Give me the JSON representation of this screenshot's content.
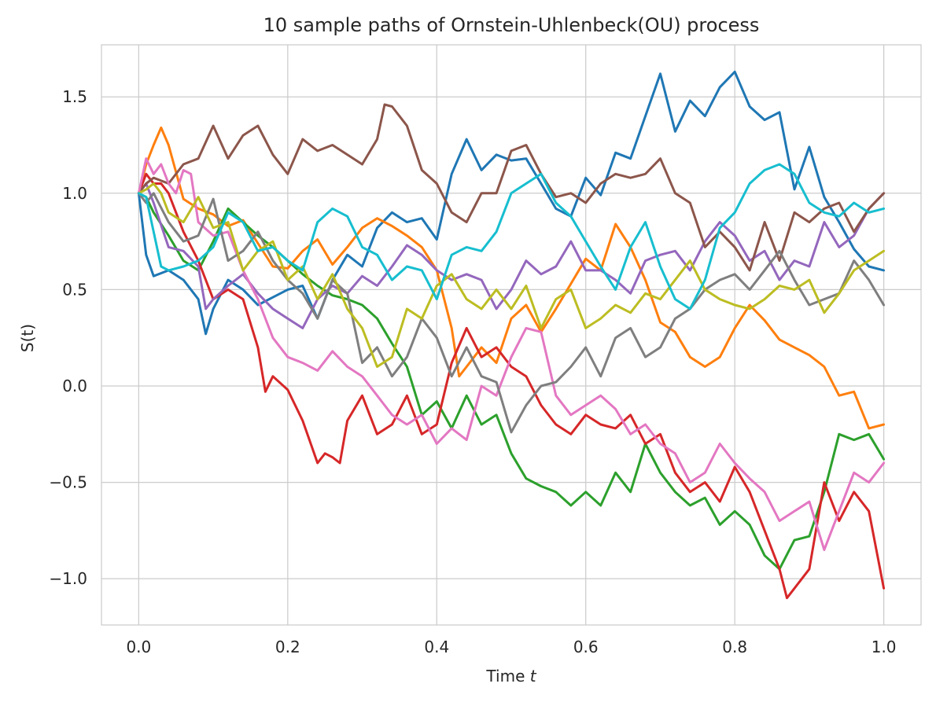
{
  "chart_data": {
    "type": "line",
    "title": "10 sample paths of Ornstein-Uhlenbeck(OU) process",
    "xlabel": "Time",
    "xlabel_var": "t",
    "ylabel": "S(t)",
    "xlim": [
      -0.05,
      1.05
    ],
    "ylim": [
      -1.24,
      1.77
    ],
    "xticks": [
      "0.0",
      "0.2",
      "0.4",
      "0.6",
      "0.8",
      "1.0"
    ],
    "yticks": [
      "−1.0",
      "−0.5",
      "0.0",
      "0.5",
      "1.0",
      "1.5"
    ],
    "grid": true,
    "legend": "none",
    "series": [
      {
        "color": "#1f77b4",
        "x": [
          0,
          0.01,
          0.02,
          0.04,
          0.06,
          0.08,
          0.09,
          0.1,
          0.12,
          0.14,
          0.16,
          0.18,
          0.2,
          0.22,
          0.24,
          0.26,
          0.28,
          0.3,
          0.32,
          0.34,
          0.36,
          0.38,
          0.4,
          0.42,
          0.44,
          0.46,
          0.48,
          0.5,
          0.52,
          0.54,
          0.56,
          0.58,
          0.6,
          0.62,
          0.64,
          0.66,
          0.68,
          0.7,
          0.72,
          0.74,
          0.76,
          0.78,
          0.8,
          0.82,
          0.84,
          0.86,
          0.88,
          0.9,
          0.92,
          0.94,
          0.96,
          0.98,
          1.0
        ],
        "y": [
          1.0,
          0.68,
          0.57,
          0.6,
          0.55,
          0.45,
          0.27,
          0.4,
          0.55,
          0.5,
          0.42,
          0.46,
          0.5,
          0.52,
          0.35,
          0.55,
          0.68,
          0.62,
          0.82,
          0.9,
          0.85,
          0.87,
          0.76,
          1.1,
          1.28,
          1.12,
          1.2,
          1.17,
          1.18,
          1.05,
          0.92,
          0.88,
          1.08,
          0.99,
          1.21,
          1.18,
          1.4,
          1.62,
          1.32,
          1.48,
          1.4,
          1.55,
          1.63,
          1.45,
          1.38,
          1.42,
          1.02,
          1.24,
          0.98,
          0.85,
          0.71,
          0.62,
          0.6
        ]
      },
      {
        "color": "#ff7f0e",
        "x": [
          0,
          0.01,
          0.02,
          0.03,
          0.04,
          0.06,
          0.08,
          0.1,
          0.12,
          0.14,
          0.16,
          0.18,
          0.2,
          0.22,
          0.24,
          0.26,
          0.28,
          0.3,
          0.32,
          0.34,
          0.36,
          0.38,
          0.4,
          0.42,
          0.43,
          0.44,
          0.46,
          0.48,
          0.5,
          0.52,
          0.54,
          0.56,
          0.58,
          0.6,
          0.62,
          0.64,
          0.66,
          0.68,
          0.7,
          0.72,
          0.74,
          0.76,
          0.78,
          0.8,
          0.82,
          0.84,
          0.86,
          0.88,
          0.9,
          0.92,
          0.94,
          0.96,
          0.98,
          1.0
        ],
        "y": [
          1.0,
          1.15,
          1.25,
          1.34,
          1.25,
          0.97,
          0.92,
          0.89,
          0.83,
          0.86,
          0.74,
          0.62,
          0.61,
          0.7,
          0.76,
          0.63,
          0.72,
          0.82,
          0.87,
          0.83,
          0.78,
          0.72,
          0.6,
          0.3,
          0.05,
          0.1,
          0.2,
          0.12,
          0.35,
          0.42,
          0.28,
          0.4,
          0.53,
          0.66,
          0.6,
          0.84,
          0.72,
          0.55,
          0.33,
          0.28,
          0.15,
          0.1,
          0.15,
          0.3,
          0.42,
          0.34,
          0.24,
          0.2,
          0.16,
          0.1,
          -0.05,
          -0.03,
          -0.22,
          -0.2
        ]
      },
      {
        "color": "#2ca02c",
        "x": [
          0,
          0.01,
          0.02,
          0.04,
          0.06,
          0.08,
          0.1,
          0.12,
          0.14,
          0.16,
          0.18,
          0.2,
          0.22,
          0.24,
          0.26,
          0.28,
          0.3,
          0.32,
          0.34,
          0.36,
          0.38,
          0.4,
          0.42,
          0.44,
          0.46,
          0.48,
          0.5,
          0.52,
          0.54,
          0.56,
          0.58,
          0.6,
          0.62,
          0.64,
          0.66,
          0.68,
          0.7,
          0.72,
          0.74,
          0.76,
          0.78,
          0.8,
          0.82,
          0.84,
          0.86,
          0.88,
          0.9,
          0.92,
          0.94,
          0.96,
          0.98,
          1.0
        ],
        "y": [
          1.0,
          0.98,
          0.9,
          0.78,
          0.65,
          0.6,
          0.75,
          0.92,
          0.85,
          0.78,
          0.72,
          0.65,
          0.58,
          0.52,
          0.47,
          0.45,
          0.42,
          0.35,
          0.22,
          0.1,
          -0.15,
          -0.08,
          -0.22,
          -0.05,
          -0.2,
          -0.15,
          -0.35,
          -0.48,
          -0.52,
          -0.55,
          -0.62,
          -0.55,
          -0.62,
          -0.45,
          -0.55,
          -0.3,
          -0.45,
          -0.55,
          -0.62,
          -0.58,
          -0.72,
          -0.65,
          -0.72,
          -0.88,
          -0.95,
          -0.8,
          -0.78,
          -0.55,
          -0.25,
          -0.28,
          -0.25,
          -0.38
        ]
      },
      {
        "color": "#d62728",
        "x": [
          0,
          0.01,
          0.02,
          0.03,
          0.04,
          0.06,
          0.08,
          0.1,
          0.12,
          0.14,
          0.16,
          0.17,
          0.18,
          0.2,
          0.22,
          0.24,
          0.25,
          0.26,
          0.27,
          0.28,
          0.3,
          0.32,
          0.34,
          0.36,
          0.38,
          0.4,
          0.42,
          0.44,
          0.46,
          0.48,
          0.5,
          0.52,
          0.54,
          0.56,
          0.58,
          0.6,
          0.62,
          0.64,
          0.66,
          0.68,
          0.7,
          0.72,
          0.74,
          0.76,
          0.78,
          0.8,
          0.82,
          0.84,
          0.86,
          0.87,
          0.88,
          0.9,
          0.92,
          0.94,
          0.96,
          0.98,
          1.0
        ],
        "y": [
          1.0,
          1.1,
          1.05,
          1.05,
          1.0,
          0.8,
          0.65,
          0.45,
          0.5,
          0.45,
          0.2,
          -0.03,
          0.05,
          -0.02,
          -0.18,
          -0.4,
          -0.35,
          -0.37,
          -0.4,
          -0.18,
          -0.05,
          -0.25,
          -0.2,
          -0.05,
          -0.25,
          -0.2,
          0.12,
          0.3,
          0.15,
          0.2,
          0.1,
          0.05,
          -0.1,
          -0.2,
          -0.25,
          -0.15,
          -0.2,
          -0.22,
          -0.15,
          -0.3,
          -0.25,
          -0.45,
          -0.55,
          -0.5,
          -0.6,
          -0.42,
          -0.55,
          -0.75,
          -0.95,
          -1.1,
          -1.05,
          -0.95,
          -0.5,
          -0.7,
          -0.55,
          -0.65,
          -1.05
        ]
      },
      {
        "color": "#9467bd",
        "x": [
          0,
          0.01,
          0.02,
          0.04,
          0.06,
          0.08,
          0.09,
          0.1,
          0.12,
          0.14,
          0.16,
          0.18,
          0.2,
          0.22,
          0.24,
          0.26,
          0.28,
          0.3,
          0.32,
          0.34,
          0.36,
          0.38,
          0.4,
          0.42,
          0.44,
          0.46,
          0.48,
          0.5,
          0.52,
          0.54,
          0.56,
          0.58,
          0.6,
          0.62,
          0.64,
          0.66,
          0.68,
          0.7,
          0.72,
          0.74,
          0.76,
          0.78,
          0.8,
          0.82,
          0.84,
          0.86,
          0.88,
          0.9,
          0.92,
          0.94,
          0.96,
          0.98,
          1.0
        ],
        "y": [
          1.0,
          1.05,
          0.95,
          0.72,
          0.7,
          0.62,
          0.4,
          0.45,
          0.52,
          0.58,
          0.48,
          0.4,
          0.35,
          0.3,
          0.45,
          0.52,
          0.48,
          0.57,
          0.52,
          0.62,
          0.73,
          0.68,
          0.6,
          0.55,
          0.58,
          0.55,
          0.4,
          0.5,
          0.65,
          0.58,
          0.62,
          0.75,
          0.6,
          0.6,
          0.55,
          0.48,
          0.65,
          0.68,
          0.7,
          0.6,
          0.75,
          0.85,
          0.78,
          0.65,
          0.7,
          0.55,
          0.65,
          0.62,
          0.85,
          0.72,
          0.78,
          0.92,
          1.0
        ]
      },
      {
        "color": "#8c564b",
        "x": [
          0,
          0.01,
          0.02,
          0.04,
          0.06,
          0.08,
          0.1,
          0.12,
          0.14,
          0.16,
          0.18,
          0.2,
          0.22,
          0.24,
          0.26,
          0.28,
          0.3,
          0.32,
          0.33,
          0.34,
          0.36,
          0.38,
          0.4,
          0.42,
          0.44,
          0.46,
          0.48,
          0.5,
          0.52,
          0.54,
          0.56,
          0.58,
          0.6,
          0.62,
          0.64,
          0.66,
          0.68,
          0.7,
          0.72,
          0.74,
          0.76,
          0.78,
          0.8,
          0.82,
          0.84,
          0.86,
          0.88,
          0.9,
          0.92,
          0.94,
          0.96,
          0.98,
          1.0
        ],
        "y": [
          1.0,
          1.05,
          1.08,
          1.05,
          1.15,
          1.18,
          1.35,
          1.18,
          1.3,
          1.35,
          1.2,
          1.1,
          1.28,
          1.22,
          1.25,
          1.2,
          1.15,
          1.28,
          1.46,
          1.45,
          1.35,
          1.12,
          1.05,
          0.9,
          0.85,
          1.0,
          1.0,
          1.22,
          1.25,
          1.1,
          0.98,
          1.0,
          0.95,
          1.05,
          1.1,
          1.08,
          1.1,
          1.18,
          1.0,
          0.95,
          0.72,
          0.8,
          0.72,
          0.6,
          0.85,
          0.65,
          0.9,
          0.85,
          0.92,
          0.95,
          0.8,
          0.92,
          1.0
        ]
      },
      {
        "color": "#e377c2",
        "x": [
          0,
          0.01,
          0.02,
          0.03,
          0.04,
          0.05,
          0.06,
          0.07,
          0.08,
          0.1,
          0.12,
          0.14,
          0.16,
          0.18,
          0.2,
          0.22,
          0.24,
          0.26,
          0.28,
          0.3,
          0.32,
          0.34,
          0.36,
          0.38,
          0.4,
          0.42,
          0.44,
          0.46,
          0.48,
          0.5,
          0.52,
          0.54,
          0.56,
          0.58,
          0.6,
          0.62,
          0.64,
          0.66,
          0.68,
          0.7,
          0.72,
          0.74,
          0.76,
          0.78,
          0.8,
          0.82,
          0.84,
          0.86,
          0.88,
          0.9,
          0.92,
          0.94,
          0.96,
          0.98,
          1.0
        ],
        "y": [
          1.0,
          1.18,
          1.1,
          1.15,
          1.05,
          1.0,
          1.12,
          1.1,
          0.85,
          0.78,
          0.8,
          0.6,
          0.45,
          0.25,
          0.15,
          0.12,
          0.08,
          0.18,
          0.1,
          0.05,
          -0.05,
          -0.15,
          -0.2,
          -0.15,
          -0.3,
          -0.22,
          -0.28,
          0.0,
          -0.05,
          0.15,
          0.3,
          0.28,
          -0.05,
          -0.15,
          -0.1,
          -0.05,
          -0.12,
          -0.25,
          -0.2,
          -0.3,
          -0.35,
          -0.5,
          -0.45,
          -0.3,
          -0.4,
          -0.48,
          -0.55,
          -0.7,
          -0.65,
          -0.6,
          -0.85,
          -0.65,
          -0.45,
          -0.5,
          -0.4
        ]
      },
      {
        "color": "#7f7f7f",
        "x": [
          0,
          0.01,
          0.02,
          0.04,
          0.06,
          0.08,
          0.1,
          0.12,
          0.14,
          0.16,
          0.18,
          0.2,
          0.22,
          0.24,
          0.26,
          0.28,
          0.3,
          0.32,
          0.34,
          0.36,
          0.38,
          0.4,
          0.42,
          0.44,
          0.46,
          0.48,
          0.5,
          0.52,
          0.54,
          0.56,
          0.58,
          0.6,
          0.62,
          0.64,
          0.66,
          0.68,
          0.7,
          0.72,
          0.74,
          0.76,
          0.78,
          0.8,
          0.82,
          0.84,
          0.86,
          0.88,
          0.9,
          0.92,
          0.94,
          0.96,
          0.98,
          1.0
        ],
        "y": [
          1.0,
          0.95,
          1.0,
          0.85,
          0.75,
          0.78,
          0.97,
          0.65,
          0.7,
          0.8,
          0.65,
          0.55,
          0.48,
          0.35,
          0.55,
          0.48,
          0.12,
          0.2,
          0.05,
          0.15,
          0.35,
          0.25,
          0.05,
          0.2,
          0.05,
          0.02,
          -0.24,
          -0.1,
          0.0,
          0.02,
          0.1,
          0.2,
          0.05,
          0.25,
          0.3,
          0.15,
          0.2,
          0.35,
          0.4,
          0.5,
          0.55,
          0.58,
          0.5,
          0.6,
          0.7,
          0.55,
          0.42,
          0.45,
          0.48,
          0.65,
          0.55,
          0.42
        ]
      },
      {
        "color": "#bcbd22",
        "x": [
          0,
          0.01,
          0.02,
          0.03,
          0.04,
          0.06,
          0.08,
          0.1,
          0.12,
          0.14,
          0.16,
          0.18,
          0.2,
          0.22,
          0.24,
          0.26,
          0.28,
          0.3,
          0.32,
          0.34,
          0.36,
          0.38,
          0.4,
          0.42,
          0.44,
          0.46,
          0.48,
          0.5,
          0.52,
          0.54,
          0.56,
          0.58,
          0.6,
          0.62,
          0.64,
          0.66,
          0.68,
          0.7,
          0.72,
          0.74,
          0.76,
          0.78,
          0.8,
          0.82,
          0.84,
          0.86,
          0.88,
          0.9,
          0.92,
          0.94,
          0.96,
          0.98,
          1.0
        ],
        "y": [
          1.0,
          1.02,
          1.05,
          1.0,
          0.9,
          0.85,
          0.98,
          0.82,
          0.85,
          0.6,
          0.7,
          0.75,
          0.55,
          0.62,
          0.45,
          0.58,
          0.4,
          0.3,
          0.1,
          0.15,
          0.4,
          0.35,
          0.52,
          0.58,
          0.45,
          0.4,
          0.5,
          0.4,
          0.52,
          0.3,
          0.45,
          0.5,
          0.3,
          0.35,
          0.42,
          0.38,
          0.48,
          0.45,
          0.55,
          0.65,
          0.5,
          0.45,
          0.42,
          0.4,
          0.45,
          0.52,
          0.5,
          0.55,
          0.38,
          0.48,
          0.6,
          0.65,
          0.7
        ]
      },
      {
        "color": "#17becf",
        "x": [
          0,
          0.01,
          0.02,
          0.03,
          0.04,
          0.06,
          0.08,
          0.1,
          0.12,
          0.14,
          0.16,
          0.18,
          0.2,
          0.22,
          0.24,
          0.26,
          0.28,
          0.3,
          0.32,
          0.34,
          0.36,
          0.38,
          0.4,
          0.42,
          0.44,
          0.46,
          0.48,
          0.5,
          0.52,
          0.54,
          0.56,
          0.58,
          0.6,
          0.62,
          0.64,
          0.66,
          0.68,
          0.7,
          0.72,
          0.74,
          0.76,
          0.78,
          0.8,
          0.82,
          0.84,
          0.86,
          0.88,
          0.9,
          0.92,
          0.94,
          0.96,
          0.98,
          1.0
        ],
        "y": [
          1.0,
          0.98,
          0.8,
          0.62,
          0.6,
          0.62,
          0.65,
          0.72,
          0.9,
          0.85,
          0.7,
          0.72,
          0.65,
          0.6,
          0.85,
          0.92,
          0.88,
          0.72,
          0.68,
          0.55,
          0.62,
          0.6,
          0.45,
          0.68,
          0.72,
          0.7,
          0.8,
          1.0,
          1.05,
          1.1,
          0.95,
          0.88,
          0.75,
          0.62,
          0.5,
          0.72,
          0.85,
          0.62,
          0.45,
          0.4,
          0.55,
          0.82,
          0.9,
          1.05,
          1.12,
          1.15,
          1.1,
          0.95,
          0.9,
          0.88,
          0.95,
          0.9,
          0.92
        ]
      }
    ]
  }
}
